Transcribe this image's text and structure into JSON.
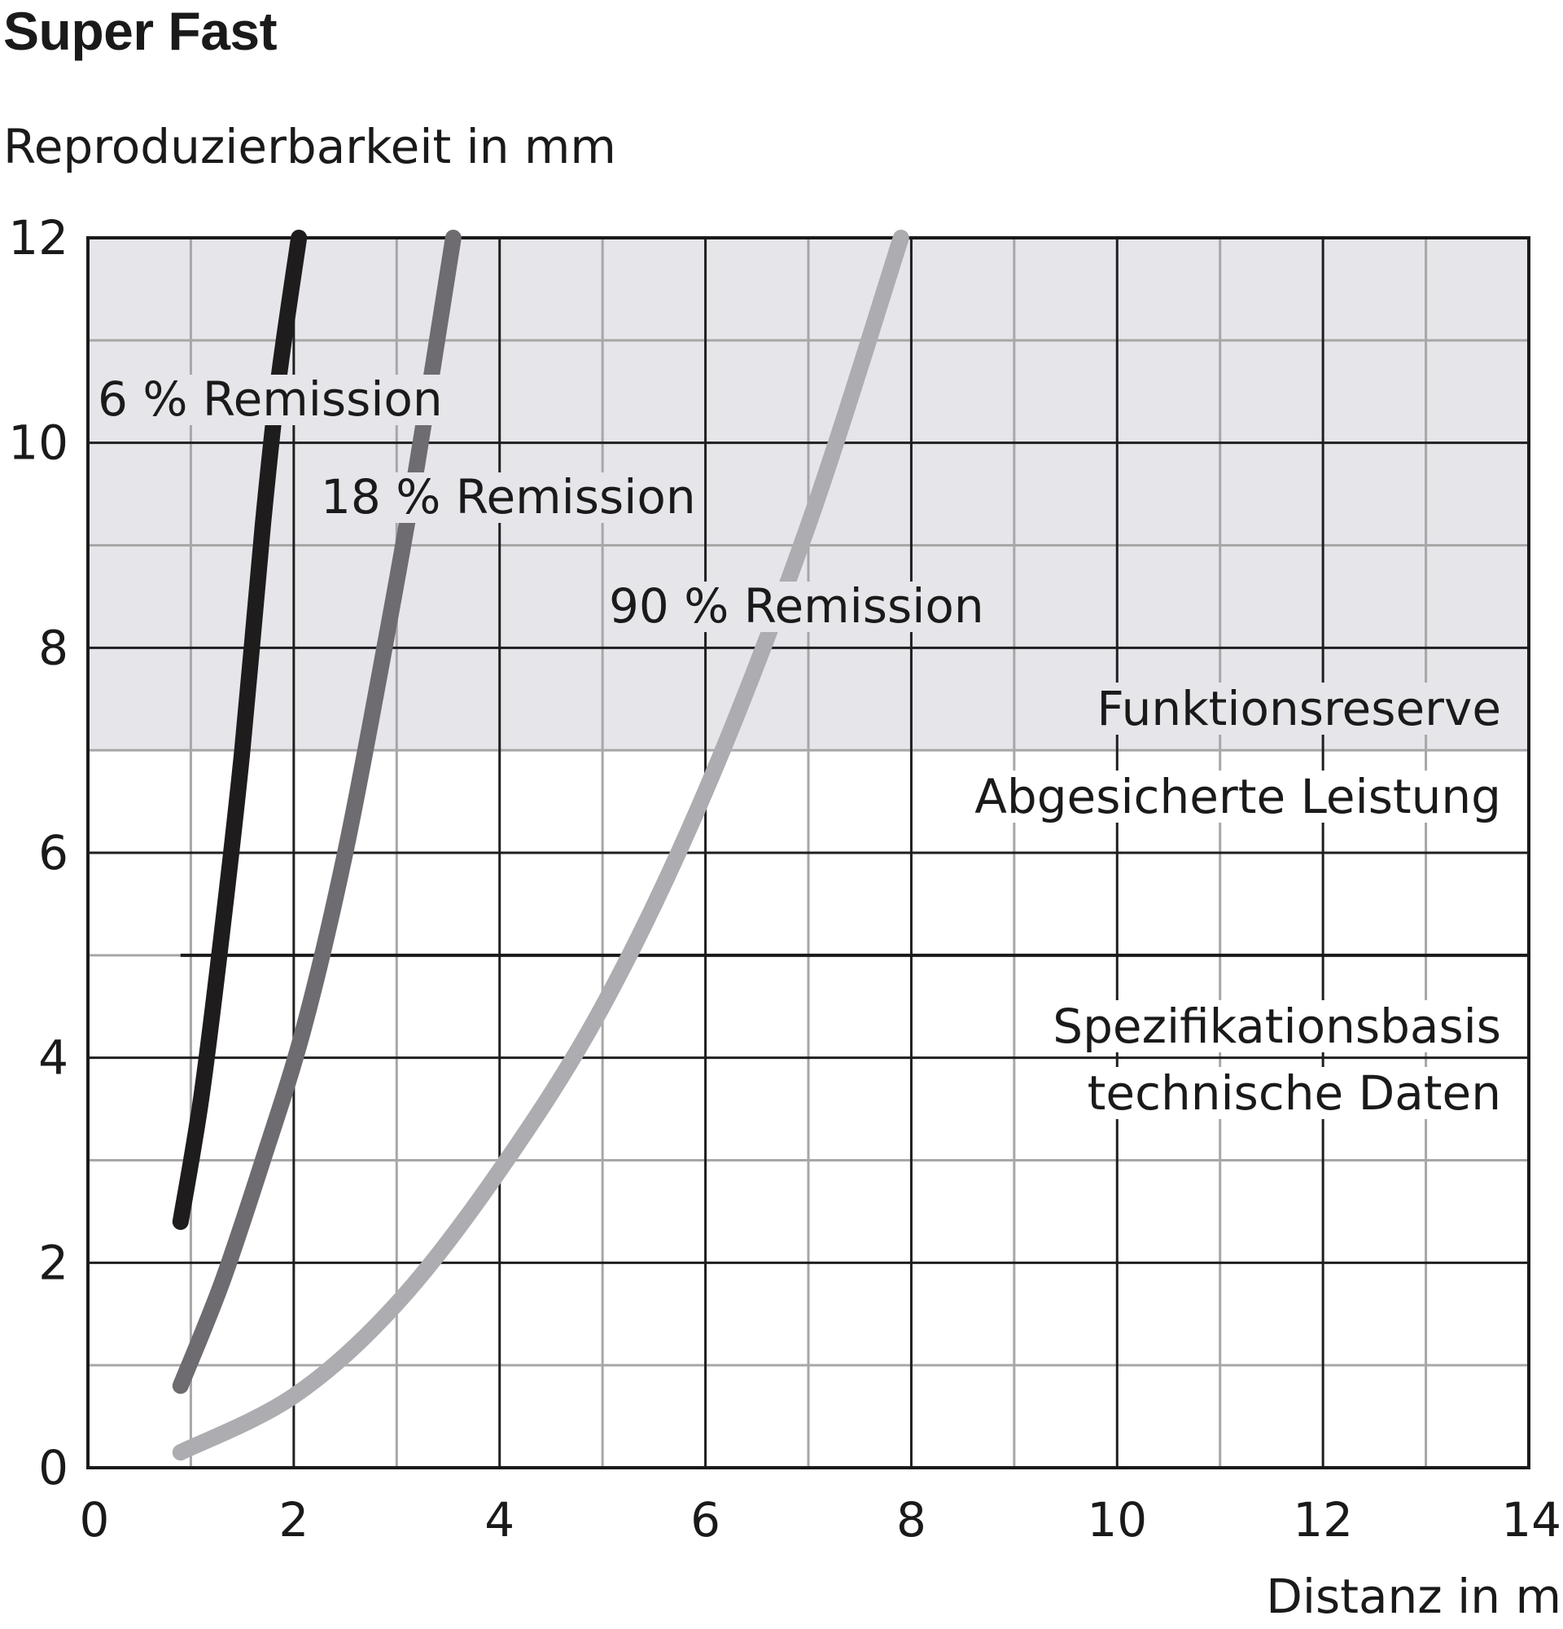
{
  "chart_data": {
    "type": "line",
    "title": "Super Fast",
    "ylabel": "Reproduzierbarkeit in mm",
    "xlabel": "Distanz in m",
    "xlim": [
      0,
      14
    ],
    "ylim": [
      0,
      12
    ],
    "x_ticks": [
      "0",
      "2",
      "4",
      "6",
      "8",
      "10",
      "12",
      "14"
    ],
    "y_ticks": [
      "0",
      "2",
      "4",
      "6",
      "8",
      "10",
      "12"
    ],
    "grid": true,
    "reserve_zone": {
      "from": 7,
      "to": 12,
      "color": "#e6e5ea"
    },
    "threshold": {
      "y": 5,
      "x_start": 0.9
    },
    "series": [
      {
        "name": "6 % Remission",
        "color": "#1f1c1e",
        "points": [
          [
            0.9,
            2.4
          ],
          [
            1.1,
            3.6
          ],
          [
            1.3,
            5.2
          ],
          [
            1.5,
            7.0
          ],
          [
            1.7,
            9.2
          ],
          [
            1.85,
            10.6
          ],
          [
            2.05,
            12.0
          ]
        ]
      },
      {
        "name": "18 % Remission",
        "color": "#6e6c70",
        "points": [
          [
            0.9,
            0.8
          ],
          [
            1.3,
            1.8
          ],
          [
            1.7,
            3.0
          ],
          [
            2.1,
            4.3
          ],
          [
            2.5,
            6.0
          ],
          [
            2.9,
            8.1
          ],
          [
            3.2,
            9.8
          ],
          [
            3.55,
            12.0
          ]
        ]
      },
      {
        "name": "90 % Remission",
        "color": "#adacb0",
        "points": [
          [
            0.9,
            0.15
          ],
          [
            2.0,
            0.7
          ],
          [
            3.0,
            1.6
          ],
          [
            4.0,
            2.9
          ],
          [
            5.0,
            4.5
          ],
          [
            6.0,
            6.6
          ],
          [
            7.0,
            9.2
          ],
          [
            7.9,
            12.0
          ]
        ]
      }
    ],
    "annotations": {
      "reserve": "Funktionsreserve",
      "assured": "Abgesicherte Leistung",
      "spec_line1": "Spezifikationsbasis",
      "spec_line2": "technische Daten"
    }
  }
}
